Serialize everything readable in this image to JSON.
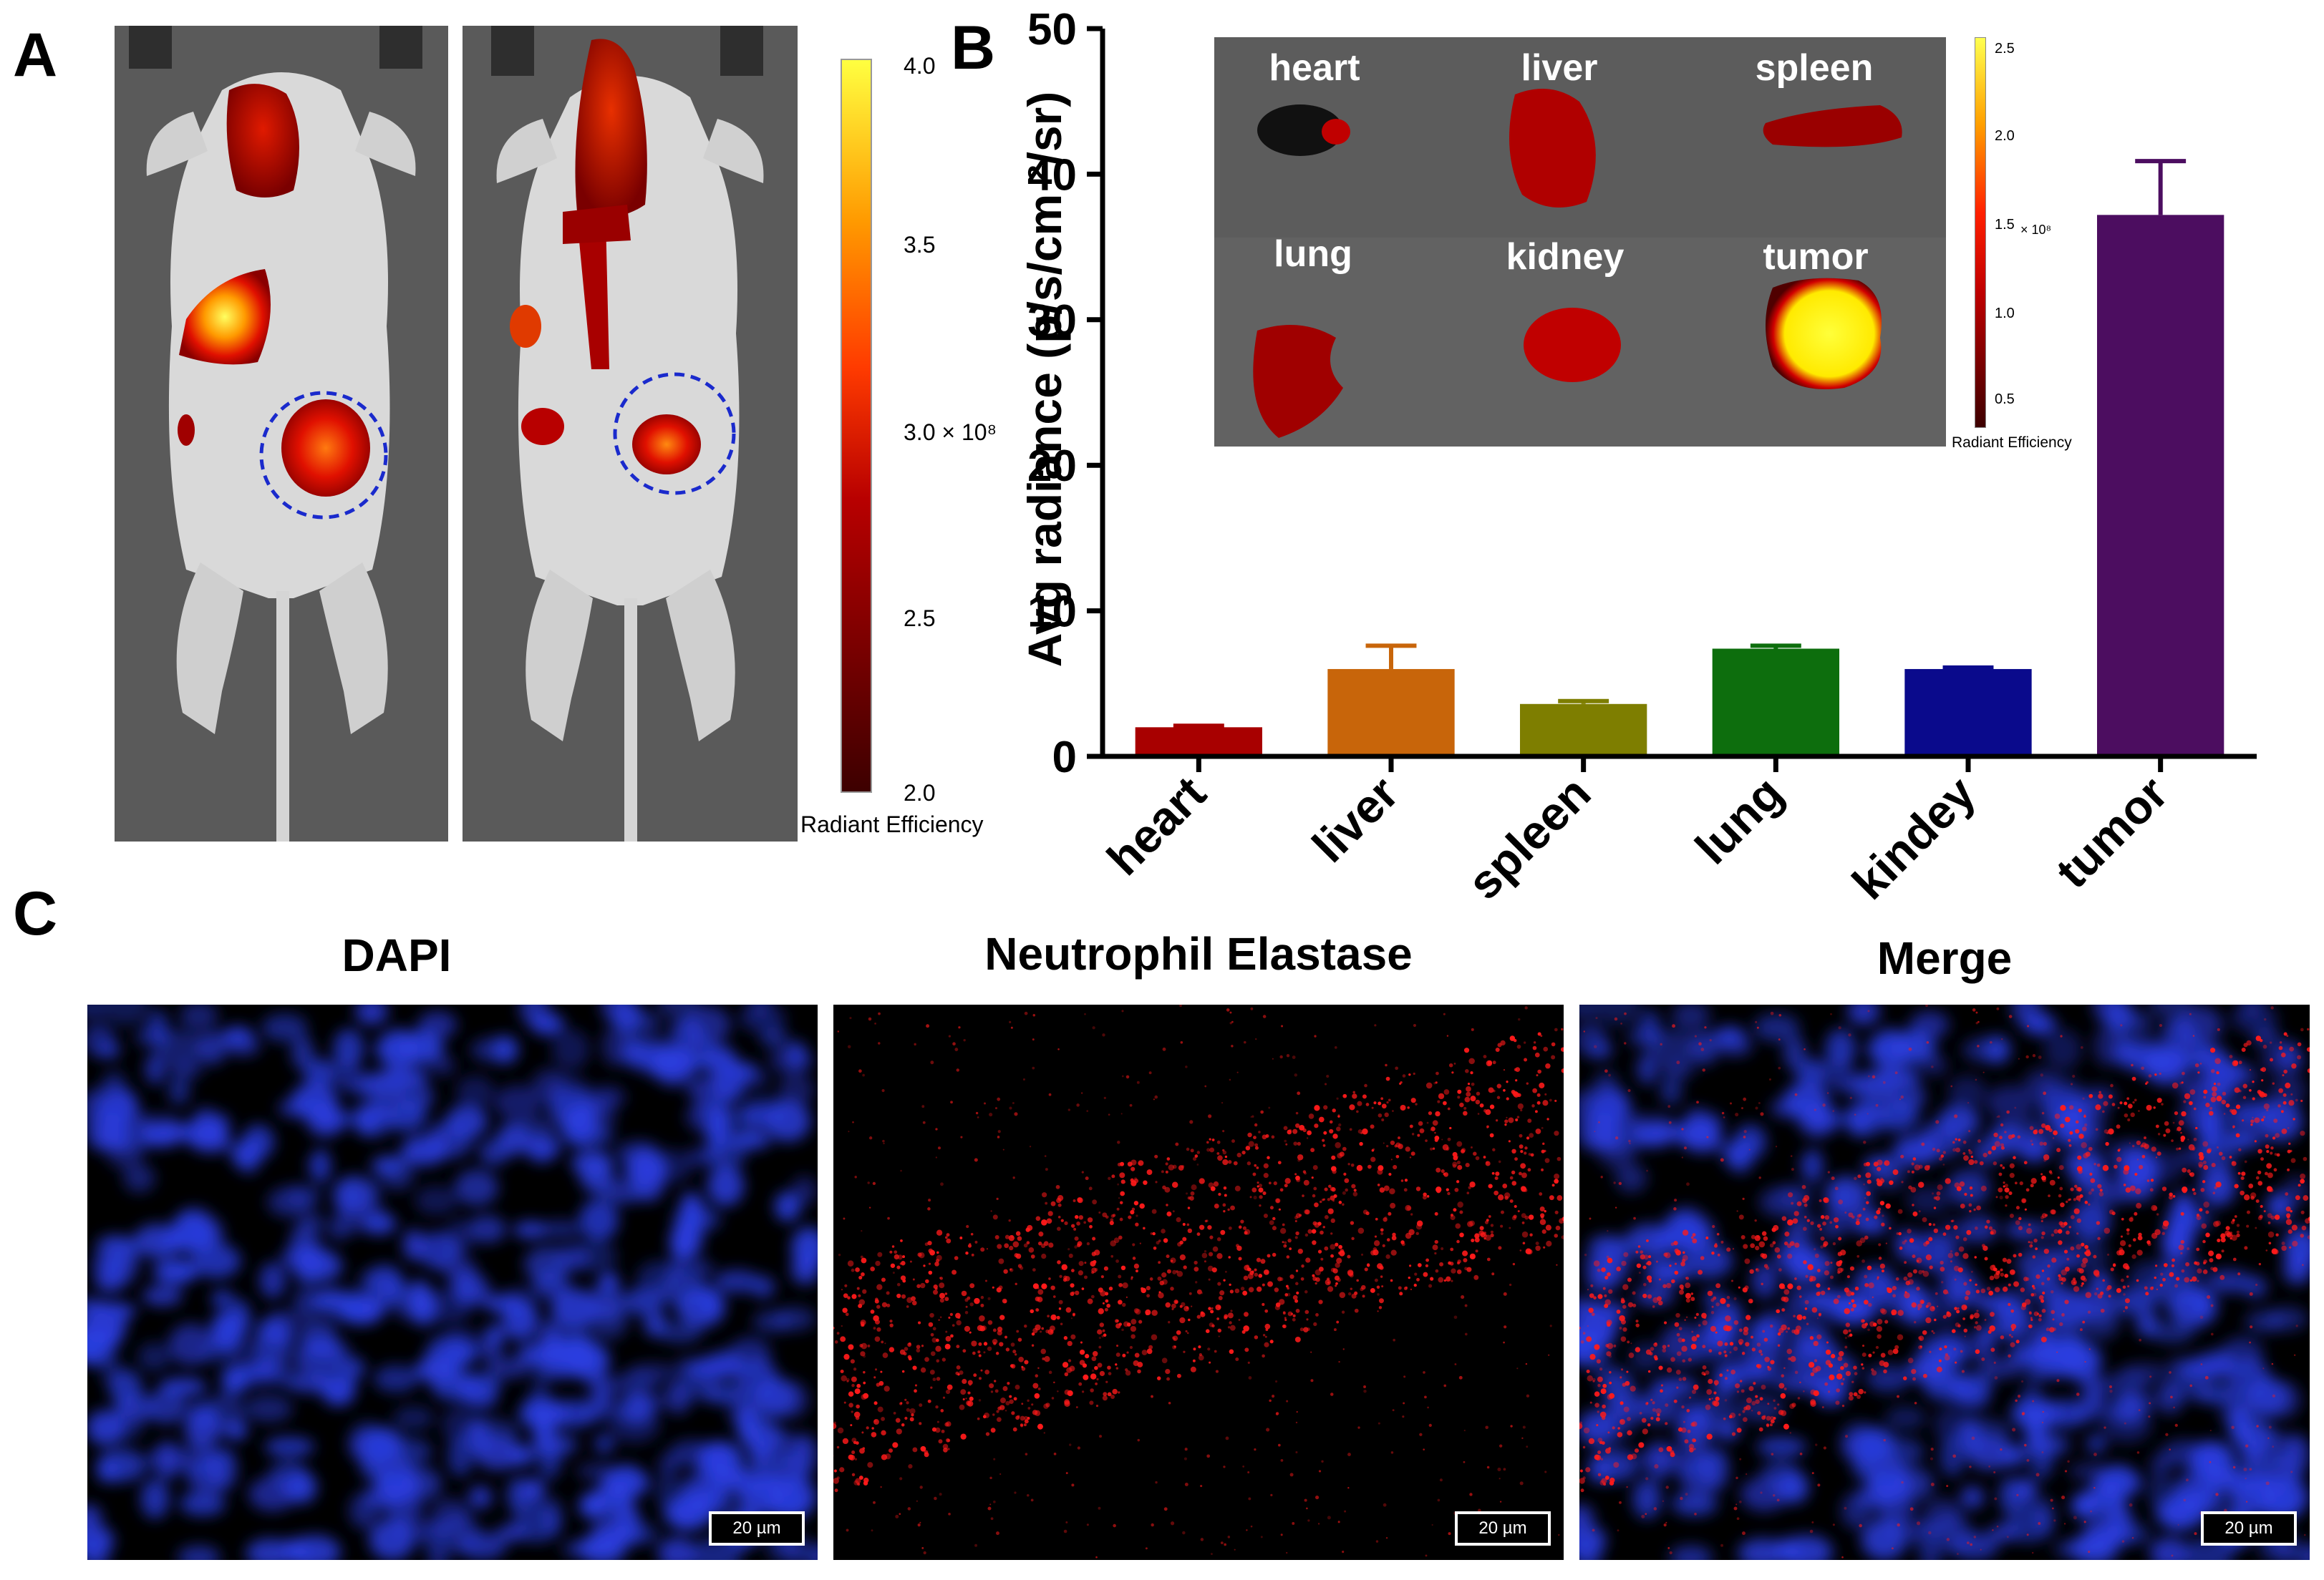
{
  "panels": {
    "a": "A",
    "b": "B",
    "c": "C"
  },
  "panel_a": {
    "colorbar": {
      "ticks": [
        "4.0",
        "3.5",
        "3.0 × 10⁸",
        "2.5",
        "2.0"
      ],
      "title": "Radiant Efficiency",
      "range": [
        2.0,
        4.0
      ],
      "colors": [
        "#3d0000",
        "#b80000",
        "#ff3b00",
        "#ff9a00",
        "#ffff40"
      ]
    },
    "mice": [
      "mouse-1",
      "mouse-2"
    ],
    "tumor_marker_color": "#1a2acc"
  },
  "panel_b_inset": {
    "organ_labels": [
      "heart",
      "liver",
      "spleen",
      "lung",
      "kidney",
      "tumor"
    ],
    "colorbar": {
      "ticks": [
        "2.5",
        "2.0",
        "1.5",
        "1.0",
        "0.5"
      ],
      "multiplier": "× 10⁸",
      "title": "Radiant Efficiency",
      "range": [
        0.3,
        2.6
      ]
    }
  },
  "chart_data": {
    "type": "bar",
    "categories": [
      "heart",
      "liver",
      "spleen",
      "lung",
      "kindey",
      "tumor"
    ],
    "values": [
      2.0,
      6.0,
      3.6,
      7.4,
      6.0,
      37.2
    ],
    "errors": [
      0.1,
      1.6,
      0.2,
      0.2,
      0.1,
      3.7
    ],
    "colors": [
      "#a80000",
      "#c8650a",
      "#7e7e00",
      "#0d6e0d",
      "#0a0a8c",
      "#4c0d60"
    ],
    "ylabel": "Avg radiance (p/s/cm ²/sr)",
    "ylim": [
      0,
      50
    ],
    "yticks": [
      0,
      10,
      20,
      30,
      40,
      50
    ],
    "grid": false
  },
  "panel_c": {
    "titles": [
      "DAPI",
      "Neutrophil Elastase",
      "Merge"
    ],
    "scalebar": "20 µm",
    "stain_colors": {
      "dapi": "#2a3de0",
      "elastase": "#ff1a1a"
    }
  }
}
